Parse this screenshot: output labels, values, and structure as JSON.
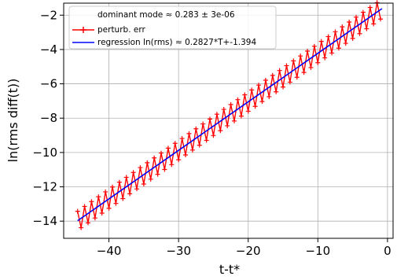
{
  "chart_data": {
    "type": "line",
    "xlabel": "t-t*",
    "ylabel": "ln(rms diff(t))",
    "xlim": [
      -46.5,
      0.8
    ],
    "ylim": [
      -15.0,
      -1.3
    ],
    "xticks": [
      -40,
      -30,
      -20,
      -10,
      0
    ],
    "yticks": [
      -14,
      -12,
      -10,
      -8,
      -6,
      -4,
      -2
    ],
    "xtick_labels": [
      "−40",
      "−30",
      "−20",
      "−10",
      "0"
    ],
    "ytick_labels": [
      "−14",
      "−12",
      "−10",
      "−8",
      "−6",
      "−4",
      "−2"
    ],
    "grid": true,
    "legend_position": "top-left",
    "legend_title": "dominant mode ≈ 0.283 ± 3e-06",
    "series": [
      {
        "name": "perturb. err",
        "color": "#ff0000",
        "marker": "plus",
        "x_start": -44.5,
        "x_end": -1.0,
        "step": 0.5,
        "trend_slope": 0.2827,
        "trend_intercept": -1.394,
        "oscillation_amplitude": 0.55,
        "oscillation_period": 1.0
      },
      {
        "name": "regression ln(rms) ≈ 0.2827*T+-1.394",
        "color": "#0000ff",
        "slope": 0.2827,
        "intercept": -1.394,
        "x_range": [
          -44.5,
          -0.8
        ]
      }
    ]
  }
}
